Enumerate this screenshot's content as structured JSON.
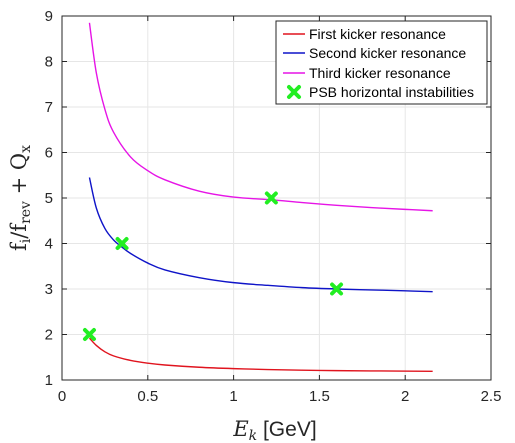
{
  "chart_data": {
    "type": "line",
    "title": "",
    "xlabel_var": "E",
    "xlabel_sub": "k",
    "xlabel_unit": " [GeV]",
    "ylabel_parts": [
      "f",
      "i",
      "/f",
      "rev",
      " + Q",
      "x"
    ],
    "xlim": [
      0,
      2.5
    ],
    "ylim": [
      1,
      9
    ],
    "xticks": [
      0,
      0.5,
      1,
      1.5,
      2,
      2.5
    ],
    "xtick_labels": [
      "0",
      "0.5",
      "1",
      "1.5",
      "2",
      "2.5"
    ],
    "yticks": [
      1,
      2,
      3,
      4,
      5,
      6,
      7,
      8,
      9
    ],
    "ytick_labels": [
      "1",
      "2",
      "3",
      "4",
      "5",
      "6",
      "7",
      "8",
      "9"
    ],
    "grid": true,
    "legend_position": "top-right",
    "series": [
      {
        "name": "First kicker resonance",
        "color": "#e0141e",
        "x": [
          0.16,
          0.2,
          0.25,
          0.3,
          0.4,
          0.5,
          0.6,
          0.8,
          1.0,
          1.2,
          1.5,
          1.8,
          2.16
        ],
        "y": [
          1.92,
          1.76,
          1.62,
          1.53,
          1.43,
          1.37,
          1.33,
          1.28,
          1.25,
          1.23,
          1.21,
          1.2,
          1.19
        ]
      },
      {
        "name": "Second kicker resonance",
        "color": "#0f14c8",
        "x": [
          0.16,
          0.2,
          0.25,
          0.3,
          0.35,
          0.4,
          0.5,
          0.6,
          0.8,
          1.0,
          1.2,
          1.4,
          1.6,
          1.8,
          2.0,
          2.16
        ],
        "y": [
          5.45,
          4.78,
          4.33,
          4.08,
          3.92,
          3.78,
          3.57,
          3.42,
          3.25,
          3.14,
          3.08,
          3.03,
          3.0,
          2.98,
          2.96,
          2.94
        ]
      },
      {
        "name": "Third kicker resonance",
        "color": "#e614e6",
        "x": [
          0.16,
          0.2,
          0.25,
          0.3,
          0.4,
          0.5,
          0.6,
          0.8,
          1.0,
          1.22,
          1.4,
          1.6,
          1.8,
          2.0,
          2.16
        ],
        "y": [
          8.85,
          7.75,
          6.95,
          6.45,
          5.9,
          5.6,
          5.4,
          5.15,
          5.02,
          4.96,
          4.9,
          4.84,
          4.79,
          4.75,
          4.72
        ]
      }
    ],
    "markers": {
      "name": "PSB horizontal instabilities",
      "color": "#22ee22",
      "points": [
        {
          "x": 0.16,
          "y": 2.0
        },
        {
          "x": 0.35,
          "y": 4.0
        },
        {
          "x": 1.22,
          "y": 5.0
        },
        {
          "x": 1.6,
          "y": 3.0
        }
      ]
    }
  }
}
